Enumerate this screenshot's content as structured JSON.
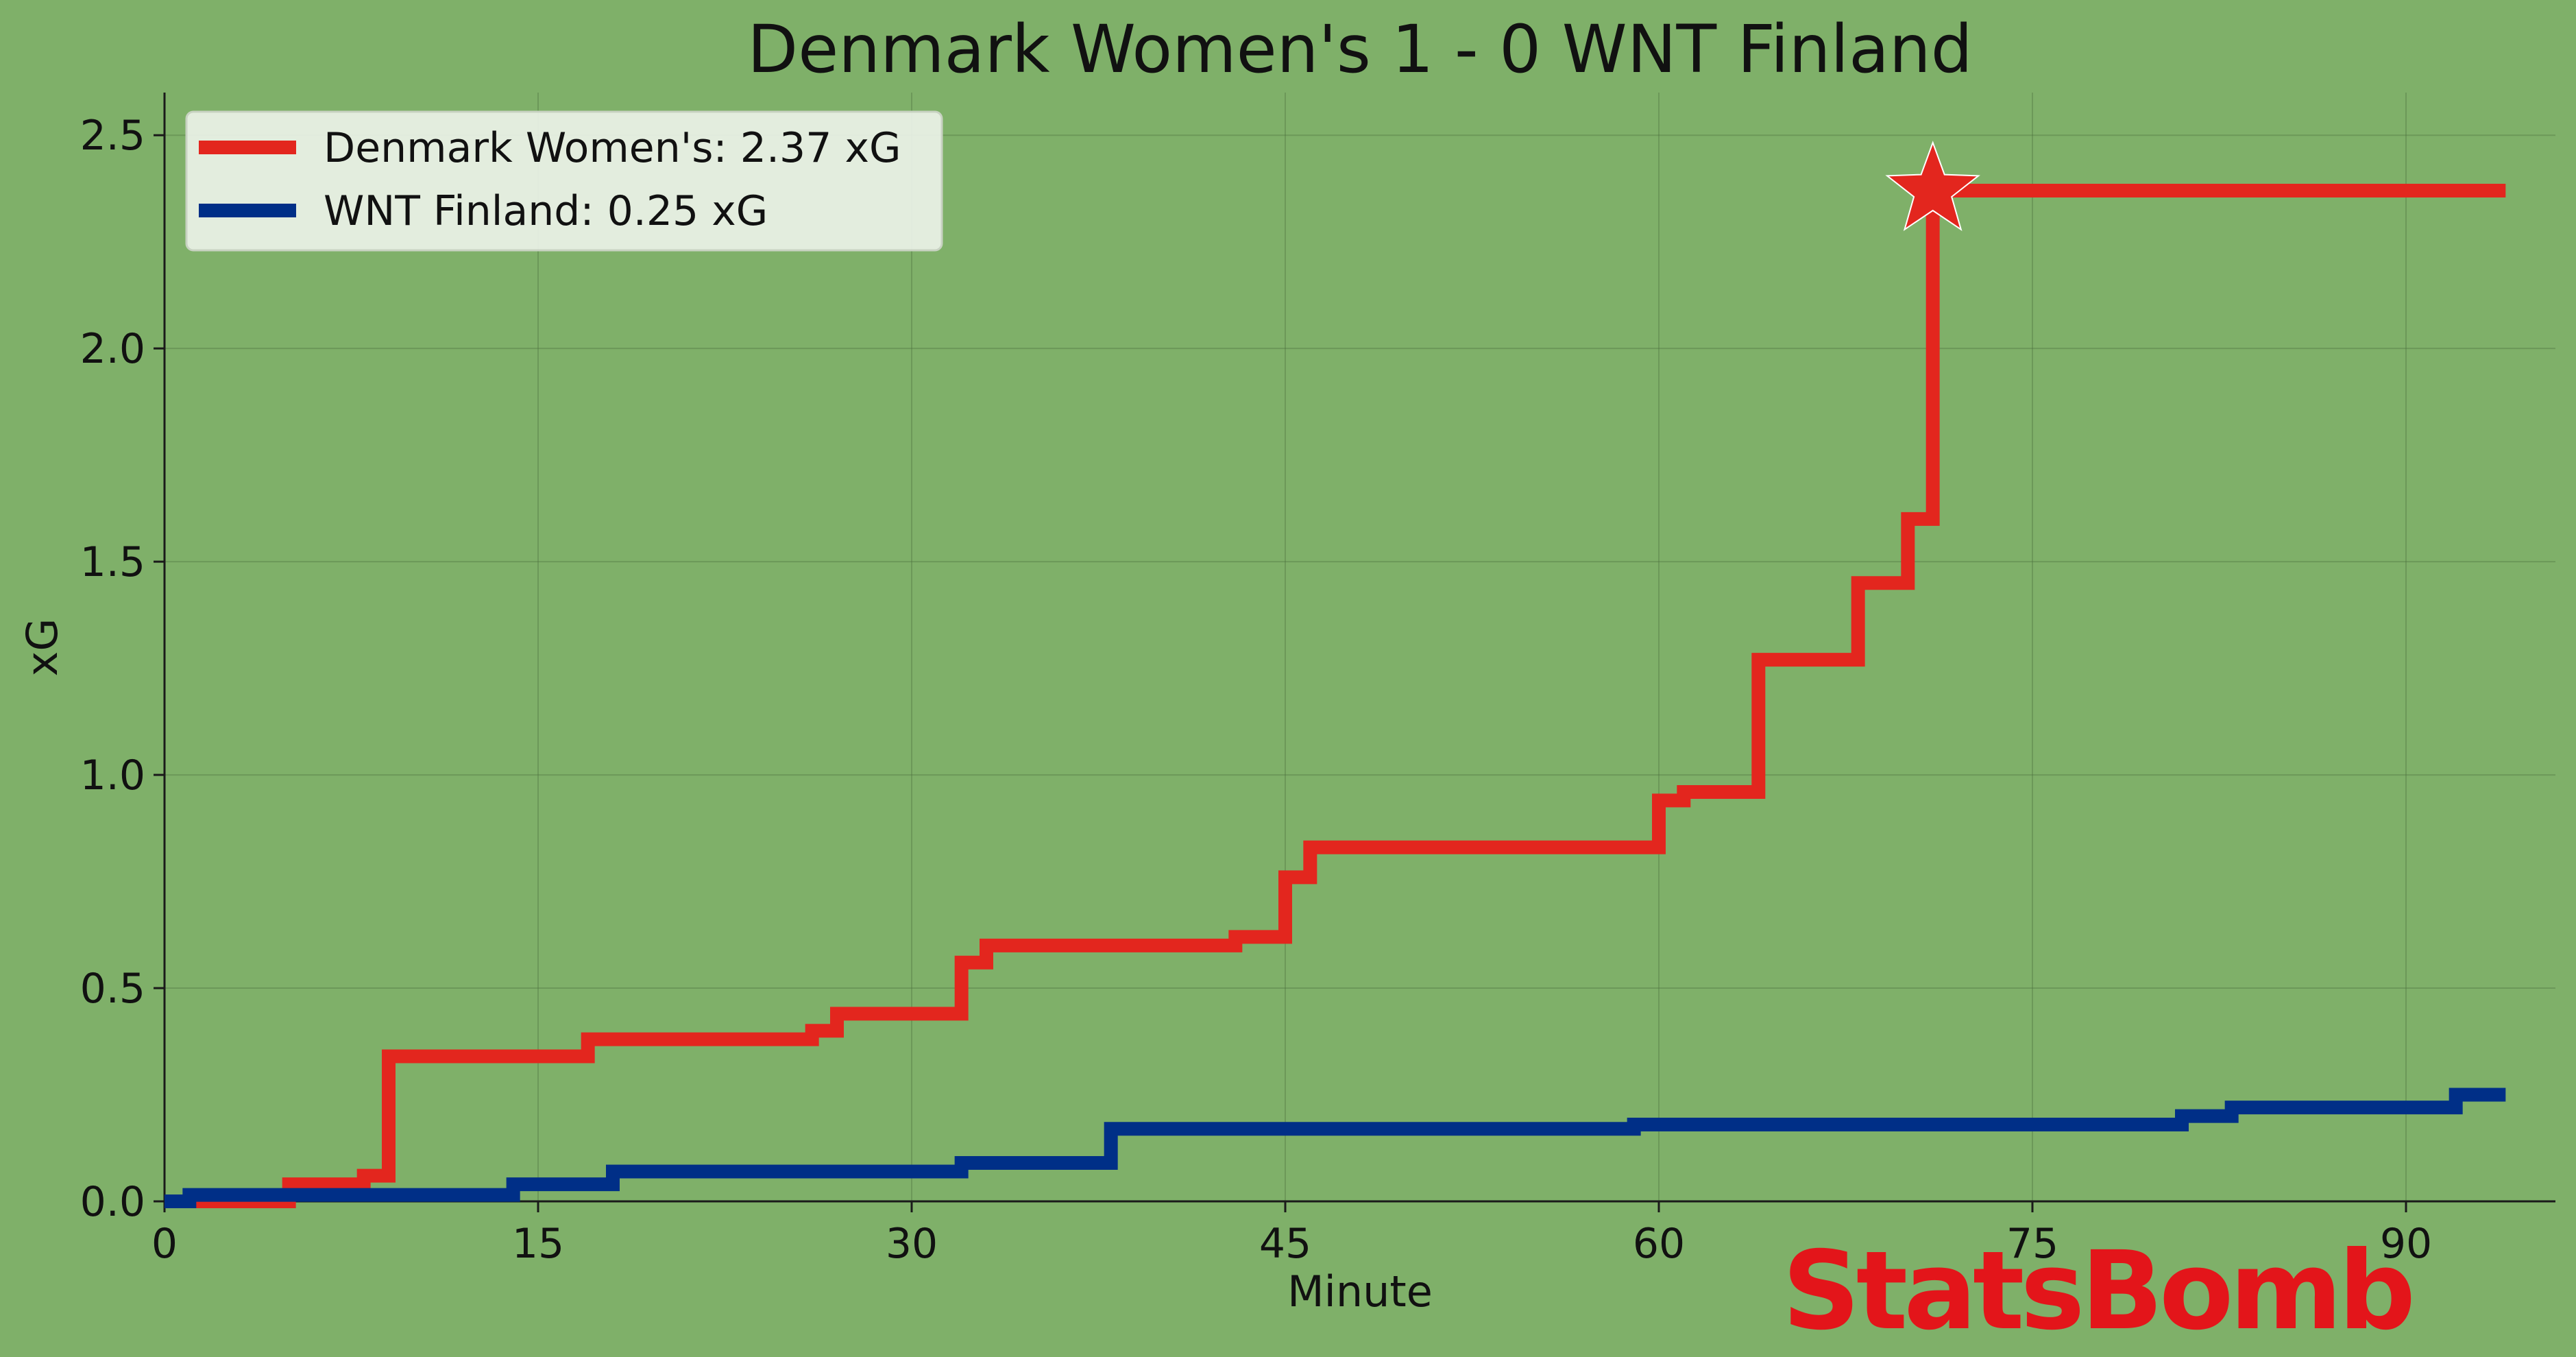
{
  "chart_data": {
    "type": "line",
    "title": "Denmark Women's 1 - 0 WNT Finland",
    "xlabel": "Minute",
    "ylabel": "xG",
    "xlim": [
      0,
      96
    ],
    "ylim": [
      0,
      2.6
    ],
    "xticks": [
      0,
      15,
      30,
      45,
      60,
      75,
      90
    ],
    "xtick_labels": [
      "0",
      "15",
      "30",
      "45",
      "60",
      "75",
      "90"
    ],
    "yticks": [
      0.0,
      0.5,
      1.0,
      1.5,
      2.0,
      2.5
    ],
    "ytick_labels": [
      "0.0",
      "0.5",
      "1.0",
      "1.5",
      "2.0",
      "2.5"
    ],
    "grid": true,
    "legend_position": "top-left",
    "step": "post",
    "series": [
      {
        "name": "Denmark Women's: 2.37 xG",
        "color": "#e3261e",
        "x": [
          0,
          5,
          8,
          9,
          17,
          26,
          27,
          32,
          33,
          43,
          45,
          46,
          60,
          61,
          64,
          68,
          70,
          71,
          94
        ],
        "y": [
          0,
          0.04,
          0.06,
          0.34,
          0.38,
          0.4,
          0.44,
          0.56,
          0.6,
          0.62,
          0.76,
          0.83,
          0.94,
          0.96,
          1.27,
          1.45,
          1.6,
          2.37,
          2.37
        ]
      },
      {
        "name": "WNT Finland: 0.25 xG",
        "color": "#002f87",
        "x": [
          0,
          1,
          14,
          18,
          32,
          38,
          59,
          81,
          83,
          92,
          94
        ],
        "y": [
          0,
          0.015,
          0.04,
          0.07,
          0.09,
          0.17,
          0.18,
          0.2,
          0.22,
          0.25,
          0.25
        ]
      }
    ],
    "annotations": [
      {
        "type": "goal-star",
        "series": "Denmark Women's: 2.37 xG",
        "x": 71,
        "y": 2.37,
        "color": "#e3261e"
      }
    ]
  },
  "branding": {
    "logo_text": "StatsBomb",
    "logo_color": "#e3151a"
  }
}
